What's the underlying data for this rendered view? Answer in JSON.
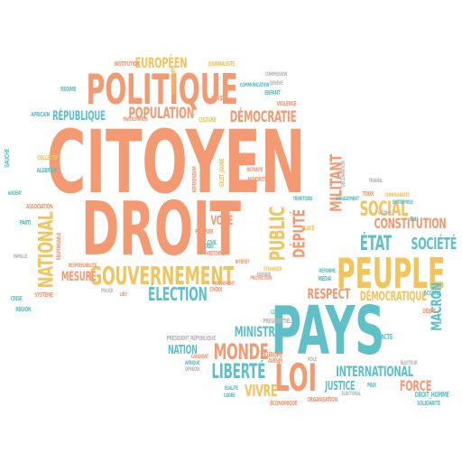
{
  "colors": {
    "orange": "#f39a73",
    "yellow": "#f2c45d",
    "teal": "#5fc0c7",
    "grey": "#b8b8b8"
  },
  "words": {
    "citoyen": "CITOYEN",
    "droit": "DROIT",
    "politique": "POLITIQUE",
    "pays": "PAYS",
    "peuple": "PEUPLE",
    "loi": "LOI",
    "gouvernement": "GOUVERNEMENT",
    "election": "ÉLECTION",
    "liberte": "LIBERTÉ",
    "monde": "MONDE",
    "etat": "ÉTAT",
    "societe": "SOCIÉTÉ",
    "social": "SOCIAL",
    "constitution": "CONSTITUTION",
    "democratie": "DÉMOCRATIE",
    "population": "POPULATION",
    "europeen": "EUROPÉEN",
    "republique": "RÉPUBLIQUE",
    "public": "PUBLIC",
    "depute": "DÉPUTÉ",
    "militant": "MILITANT",
    "national": "NATIONAL",
    "mesure": "MESURE",
    "vote": "VOTE",
    "ministre": "MINISTRE",
    "nation": "NATION",
    "international": "INTERNATIONAL",
    "justice": "JUSTICE",
    "force": "FORCE",
    "respect": "RESPECT",
    "democratique": "DÉMOCRATIQUE",
    "macron": "MACRON",
    "vivre": "VIVRE",
    "president_republique": "PRÉSIDENT_RÉPUBLIQUE",
    "lutte": "LUTTE",
    "acte": "ACTE",
    "droit_homme": "DROIT_HOMME",
    "solidarite": "SOLIDARITÉ",
    "europe": "EUROPE",
    "avenir": "AVENIR",
    "economique": "ÉCONOMIQUE",
    "organisation": "ORGANISATION",
    "electoral": "ÉLECTORAL",
    "paix": "PAIX",
    "journaliste": "JOURNALISTE",
    "institution": "INSTITUTION",
    "culture": "CULTURE",
    "violence": "VIOLENCE",
    "enfant": "ENFANT",
    "regime": "RÉGIME",
    "africain": "AFRICAIN",
    "collectif": "COLLECTIF",
    "algerien": "ALGÉRIEN",
    "gauche": "GAUCHE",
    "association": "ASSOCIATION",
    "parti": "PARTI",
    "crise": "CRISE",
    "systeme": "SYSTÈME",
    "region": "RÉGION",
    "famille": "FAMILLE",
    "argent": "ARGENT",
    "responsable": "RESPONSABLE",
    "responsabilite": "RESPONSABILITÉ",
    "engagement": "ENGAGEMENT",
    "travail": "TRAVAIL",
    "communaute": "COMMUNAUTÉ",
    "entreprise": "ENTREPRISE",
    "tour": "TOUR",
    "declaration": "DÉCLARATION",
    "humain": "HUMAIN",
    "interet": "INTÉRÊT",
    "etranger": "ÉTRANGER",
    "media": "MÉDIA",
    "civil": "CIVIL",
    "histoire": "HISTOIRE",
    "cree": "CRÉÉ",
    "choix": "CHOIX",
    "mouvement": "MOUVEMENT",
    "place": "PLACE",
    "reforme": "RÉFORME",
    "debat": "DÉBAT",
    "accord": "ACCORD",
    "candidat": "CANDIDAT",
    "afrique": "AFRIQUE",
    "opinion": "OPINION",
    "cadre": "CADRE",
    "egalite": "ÉGALITÉ",
    "presidentiel": "PRÉSIDENTIEL",
    "electeur": "ÉLECTEUR",
    "uni": "UNI",
    "voix": "VOIX",
    "majorite": "MAJORITÉ",
    "retraite": "RETRAITE",
    "gilet_jaune": "GILET_JAUNE",
    "referendum": "RÉFÉRENDUM",
    "defendre": "DÉFENDRE",
    "humanite": "HUMANITÉ",
    "covid": "COVID",
    "commission": "COMMISSION",
    "geneve": "GENÈVE",
    "territoire": "TERRITOIRE",
    "elu": "ÉLU",
    "victime": "VICTIME",
    "lieu": "LIEU",
    "police": "POLICE",
    "protection": "PROTECTION",
    "participation": "PARTICIPATION",
    "souverainete": "SOUVERAINETÉ",
    "etat2": "ÉTAT",
    "role": "RÔLE",
    "communication": "COMMUNICATION",
    "pouvoir": "POUVOIR"
  }
}
